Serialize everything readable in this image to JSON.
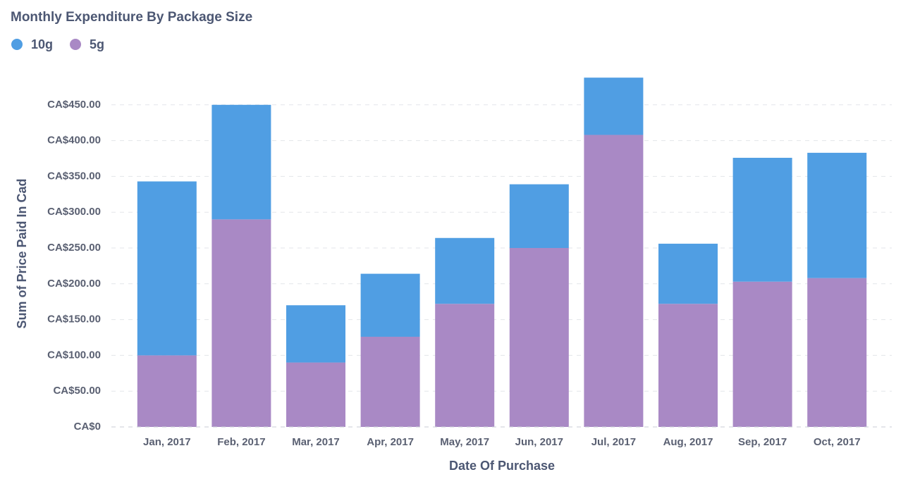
{
  "chart_data": {
    "type": "stacked-bar",
    "title": "Monthly Expenditure By Package Size",
    "x_label": "Date Of Purchase",
    "y_label": "Sum of Price Paid In Cad",
    "categories": [
      "Jan, 2017",
      "Feb, 2017",
      "Mar, 2017",
      "Apr, 2017",
      "May, 2017",
      "Jun, 2017",
      "Jul, 2017",
      "Aug, 2017",
      "Sep, 2017",
      "Oct, 2017"
    ],
    "series": [
      {
        "name": "10g",
        "color": "#509ee3",
        "values": [
          243,
          160,
          80,
          88,
          92,
          89,
          80,
          84,
          173,
          175
        ]
      },
      {
        "name": "5g",
        "color": "#a989c5",
        "values": [
          100,
          290,
          90,
          126,
          172,
          250,
          408,
          172,
          203,
          208
        ]
      }
    ],
    "ylim": [
      0,
      500
    ],
    "yticks": [
      {
        "value": 0,
        "label": "CA$0"
      },
      {
        "value": 50,
        "label": "CA$50.00"
      },
      {
        "value": 100,
        "label": "CA$100.00"
      },
      {
        "value": 150,
        "label": "CA$150.00"
      },
      {
        "value": 200,
        "label": "CA$200.00"
      },
      {
        "value": 250,
        "label": "CA$250.00"
      },
      {
        "value": 300,
        "label": "CA$300.00"
      },
      {
        "value": 350,
        "label": "CA$350.00"
      },
      {
        "value": 400,
        "label": "CA$400.00"
      },
      {
        "value": 450,
        "label": "CA$450.00"
      }
    ],
    "grid": true,
    "legend": "top-left"
  }
}
